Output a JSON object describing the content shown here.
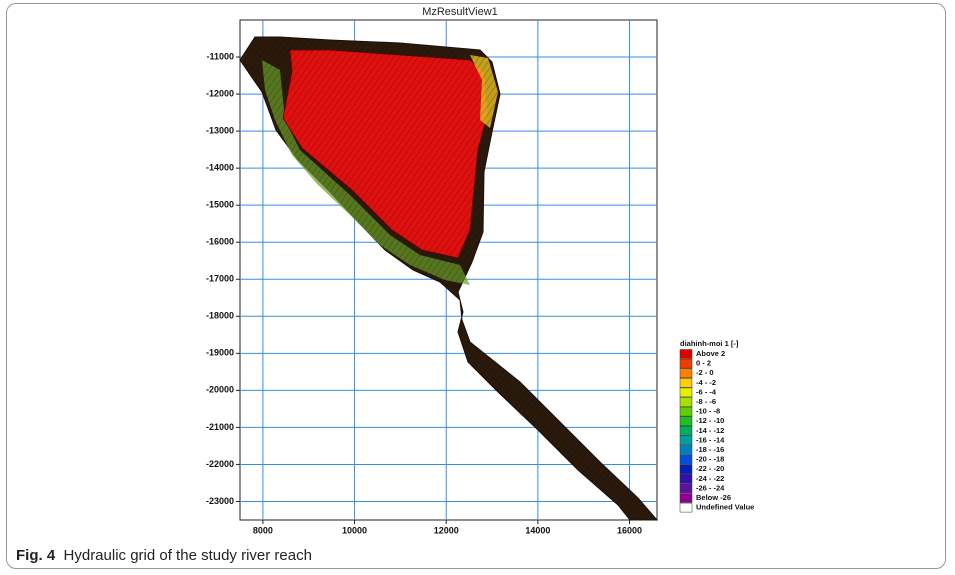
{
  "figure": {
    "title": "MzResultView1",
    "xlim": [
      7500,
      16600
    ],
    "ylim": [
      -23500,
      -10000
    ],
    "xticks": [
      8000,
      10000,
      12000,
      14000,
      16000
    ],
    "yticks": [
      -11000,
      -12000,
      -13000,
      -14000,
      -15000,
      -16000,
      -17000,
      -18000,
      -19000,
      -20000,
      -21000,
      -22000,
      -23000
    ],
    "grid": true,
    "legend": {
      "title": "diahinh-moi 1 [-]",
      "items": [
        {
          "label": "Above  2",
          "color": "#e00000"
        },
        {
          "label": "0 -  2",
          "color": "#f03c00"
        },
        {
          "label": "-2 -  0",
          "color": "#ff8000"
        },
        {
          "label": "-4 -  -2",
          "color": "#ffd000"
        },
        {
          "label": "-6 -  -4",
          "color": "#e8f000"
        },
        {
          "label": "-8 -  -6",
          "color": "#a8e000"
        },
        {
          "label": "-10 -  -8",
          "color": "#60d000"
        },
        {
          "label": "-12 - -10",
          "color": "#20c020"
        },
        {
          "label": "-14 - -12",
          "color": "#00b060"
        },
        {
          "label": "-16 - -14",
          "color": "#00a0a0"
        },
        {
          "label": "-18 - -16",
          "color": "#0080c0"
        },
        {
          "label": "-20 - -18",
          "color": "#0050e0"
        },
        {
          "label": "-22 - -20",
          "color": "#0020c0"
        },
        {
          "label": "-24 - -22",
          "color": "#3010b0"
        },
        {
          "label": "-26 - -24",
          "color": "#6010a0"
        },
        {
          "label": "Below -26",
          "color": "#900090"
        },
        {
          "label": "Undefined Value",
          "color": "#ffffff"
        }
      ]
    }
  },
  "caption": {
    "label": "Fig. 4",
    "text": "Hydraulic grid of the study river reach"
  }
}
